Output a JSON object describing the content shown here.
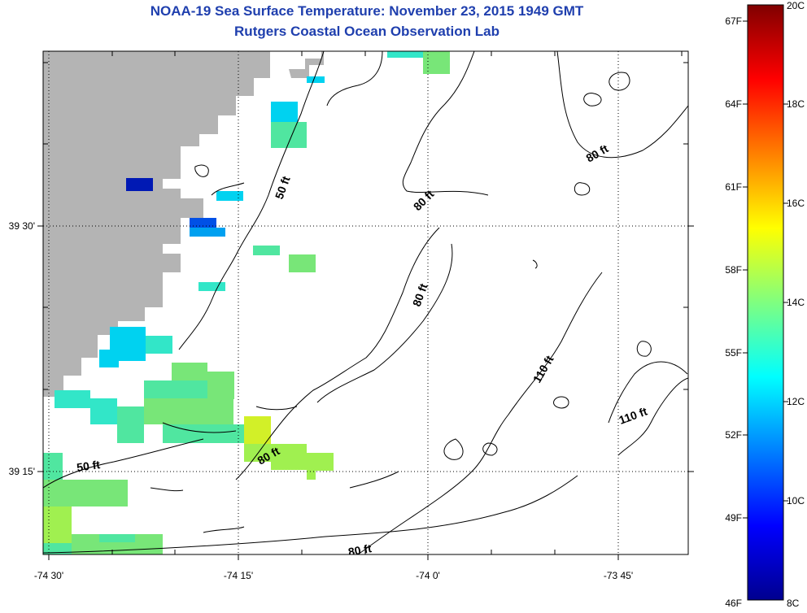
{
  "title": "NOAA-19 Sea Surface Temperature:  November 23, 2015 1949 GMT",
  "subtitle": "Rutgers Coastal Ocean Observation Lab",
  "map": {
    "lon_ticks": [
      "-74 30'",
      "-74 15'",
      "-74 0'",
      "-73 45'"
    ],
    "lat_ticks": [
      "39 30'",
      "39 15'"
    ],
    "land_color": "#b4b4b4",
    "contour_labels": [
      {
        "text": "50 ft"
      },
      {
        "text": "50 ft"
      },
      {
        "text": "80 ft"
      },
      {
        "text": "80 ft"
      },
      {
        "text": "80 ft"
      },
      {
        "text": "80 ft"
      },
      {
        "text": "80 ft"
      },
      {
        "text": "110 ft"
      },
      {
        "text": "110 ft"
      }
    ]
  },
  "colorbar": {
    "celsius_labels": [
      "20C",
      "18C",
      "16C",
      "14C",
      "12C",
      "10C",
      "8C"
    ],
    "fahrenheit_labels": [
      "67F",
      "64F",
      "61F",
      "58F",
      "55F",
      "52F",
      "49F",
      "46F"
    ],
    "range_c": [
      8,
      20
    ],
    "colormap": "jet"
  },
  "sst_colors": {
    "dark_blue": "#0019b4",
    "blue": "#0050e6",
    "light_blue": "#00a0f0",
    "cyan": "#00d2f0",
    "aqua": "#32e6c8",
    "teal_green": "#50e6a0",
    "green": "#78e678",
    "yellow_green": "#a0f050",
    "yellow": "#d2f028"
  }
}
